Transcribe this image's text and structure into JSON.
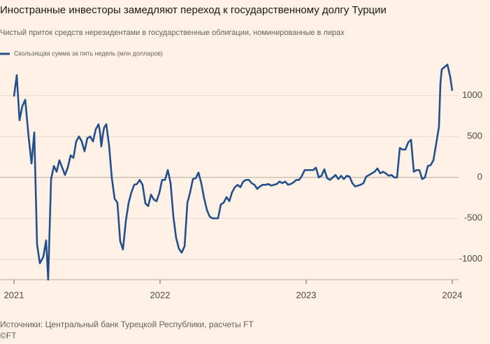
{
  "chart_data": {
    "type": "line",
    "title": "Иностранные инвесторы замедляют переход к государственному долгу Турции",
    "subtitle": "Чистый приток средств нерезидентами в государственные облигации, номинированные в лирах",
    "source": "Источники: Центральный банк Турецкой Республики, расчеты FT",
    "credit": "©FT",
    "xlim": [
      2021,
      2024
    ],
    "xticks": [
      2021,
      2022,
      2023,
      2024
    ],
    "ylim": [
      -1250,
      1400
    ],
    "yticks": [
      -1000,
      -500,
      0,
      500,
      1000
    ],
    "grid": true,
    "x": [
      2021.0,
      2021.019,
      2021.038,
      2021.057,
      2021.077,
      2021.1,
      2021.12,
      2021.139,
      2021.158,
      2021.177,
      2021.201,
      2021.22,
      2021.234,
      2021.254,
      2021.273,
      2021.292,
      2021.311,
      2021.33,
      2021.349,
      2021.368,
      2021.388,
      2021.407,
      2021.426,
      2021.445,
      2021.464,
      2021.483,
      2021.502,
      2021.522,
      2021.541,
      2021.56,
      2021.579,
      2021.589,
      2021.598,
      2021.608,
      2021.617,
      2021.632,
      2021.651,
      2021.67,
      2021.689,
      2021.708,
      2021.727,
      2021.746,
      2021.766,
      2021.785,
      2021.804,
      2021.823,
      2021.842,
      2021.861,
      2021.88,
      2021.9,
      2021.919,
      2021.938,
      2021.957,
      2021.976,
      2021.995,
      2022.014,
      2022.034,
      2022.053,
      2022.072,
      2022.091,
      2022.11,
      2022.129,
      2022.148,
      2022.168,
      2022.187,
      2022.206,
      2022.225,
      2022.244,
      2022.263,
      2022.282,
      2022.301,
      2022.321,
      2022.34,
      2022.359,
      2022.378,
      2022.397,
      2022.416,
      2022.435,
      2022.455,
      2022.474,
      2022.493,
      2022.512,
      2022.531,
      2022.55,
      2022.569,
      2022.589,
      2022.608,
      2022.627,
      2022.646,
      2022.665,
      2022.684,
      2022.703,
      2022.722,
      2022.742,
      2022.761,
      2022.78,
      2022.799,
      2022.818,
      2022.837,
      2022.856,
      2022.876,
      2022.895,
      2022.914,
      2022.933,
      2022.952,
      2022.971,
      2022.99,
      2023.01,
      2023.029,
      2023.048,
      2023.067,
      2023.086,
      2023.105,
      2023.124,
      2023.144,
      2023.163,
      2023.182,
      2023.201,
      2023.22,
      2023.239,
      2023.258,
      2023.278,
      2023.297,
      2023.316,
      2023.335,
      2023.354,
      2023.373,
      2023.392,
      2023.411,
      2023.431,
      2023.45,
      2023.469,
      2023.488,
      2023.507,
      2023.526,
      2023.545,
      2023.565,
      2023.584,
      2023.603,
      2023.622,
      2023.641,
      2023.66,
      2023.679,
      2023.699,
      2023.718,
      2023.737,
      2023.756,
      2023.775,
      2023.794,
      2023.813,
      2023.833,
      2023.852,
      2023.871,
      2023.89,
      2023.909,
      2023.919,
      2023.928,
      2023.947,
      2023.967,
      2023.986,
      2024.0
    ],
    "series": [
      {
        "name": "Скользящая сумма за пять недель (млн долларов)",
        "color": "#234f8b",
        "values": [
          990,
          1250,
          700,
          870,
          950,
          500,
          170,
          550,
          -820,
          -1050,
          -970,
          -770,
          -1250,
          -20,
          140,
          70,
          210,
          120,
          30,
          120,
          270,
          240,
          440,
          500,
          440,
          320,
          480,
          500,
          440,
          590,
          650,
          550,
          380,
          520,
          610,
          650,
          390,
          -10,
          -260,
          -310,
          -780,
          -880,
          -530,
          -310,
          -180,
          -90,
          -80,
          -30,
          -90,
          -320,
          -350,
          -210,
          -270,
          -290,
          -190,
          -30,
          -30,
          90,
          -70,
          -480,
          -740,
          -870,
          -920,
          -840,
          -310,
          -180,
          -20,
          -10,
          60,
          -70,
          -250,
          -400,
          -480,
          -500,
          -500,
          -500,
          -330,
          -310,
          -240,
          -290,
          -180,
          -120,
          -90,
          -120,
          -50,
          -30,
          -30,
          -70,
          -90,
          -140,
          -110,
          -90,
          -90,
          -80,
          -100,
          -90,
          -80,
          -50,
          -70,
          -50,
          -90,
          -80,
          -60,
          -30,
          -30,
          20,
          90,
          90,
          90,
          90,
          120,
          0,
          20,
          100,
          -10,
          -30,
          0,
          30,
          -20,
          20,
          -20,
          20,
          10,
          -70,
          -110,
          -100,
          -90,
          -70,
          10,
          30,
          50,
          70,
          110,
          50,
          70,
          50,
          20,
          30,
          0,
          0,
          360,
          340,
          340,
          430,
          460,
          70,
          90,
          90,
          -20,
          0,
          140,
          150,
          210,
          410,
          620,
          1150,
          1320,
          1350,
          1380,
          1230,
          1060
        ]
      }
    ]
  }
}
